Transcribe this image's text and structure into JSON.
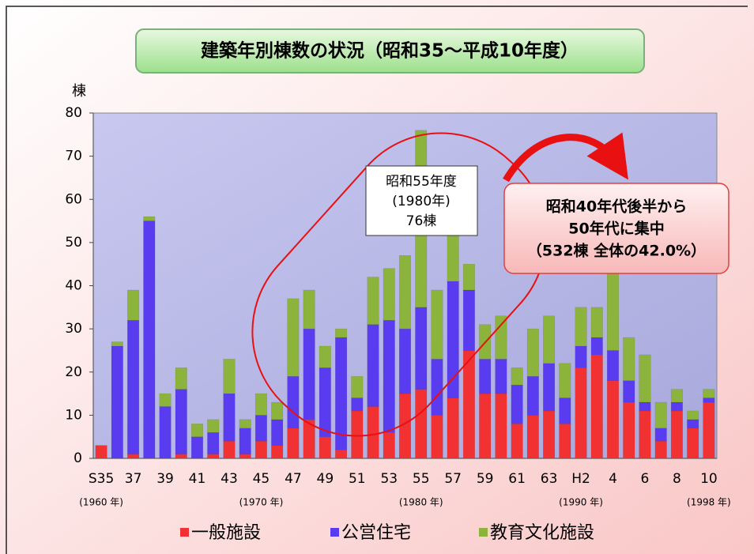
{
  "chart_data": {
    "type": "stacked_bar",
    "title": "建築年別棟数の状況（昭和35〜平成10年度）",
    "y_axis_label": "棟",
    "categories": [
      "S35",
      null,
      "37",
      null,
      "39",
      null,
      "41",
      null,
      "43",
      null,
      "45",
      null,
      "47",
      null,
      "49",
      null,
      "51",
      null,
      "53",
      null,
      "55",
      null,
      "57",
      null,
      "59",
      null,
      "61",
      null,
      "63",
      null,
      "H2",
      null,
      "4",
      null,
      "6",
      null,
      "8",
      null,
      "10"
    ],
    "year_labels": [
      "(1960 年)",
      null,
      null,
      null,
      null,
      null,
      null,
      null,
      null,
      null,
      "(1970 年)",
      null,
      null,
      null,
      null,
      null,
      null,
      null,
      null,
      null,
      "(1980 年)",
      null,
      null,
      null,
      null,
      null,
      null,
      null,
      null,
      null,
      "(1990 年)",
      null,
      null,
      null,
      null,
      null,
      null,
      null,
      "(1998 年)"
    ],
    "series": [
      {
        "name": "一般施設",
        "color": "#f23232",
        "values": [
          3,
          0,
          1,
          0,
          0,
          1,
          0,
          1,
          4,
          1,
          4,
          3,
          7,
          9,
          5,
          2,
          11,
          12,
          6,
          15,
          16,
          10,
          14,
          25,
          15,
          15,
          8,
          10,
          11,
          8,
          21,
          24,
          18,
          13,
          11,
          4,
          11,
          7,
          13
        ]
      },
      {
        "name": "公営住宅",
        "color": "#5a3cf0",
        "values": [
          0,
          26,
          31,
          55,
          12,
          15,
          5,
          5,
          11,
          6,
          6,
          6,
          12,
          21,
          16,
          26,
          3,
          19,
          26,
          15,
          19,
          13,
          27,
          14,
          8,
          8,
          9,
          9,
          11,
          6,
          5,
          4,
          7,
          5,
          2,
          3,
          2,
          2,
          1
        ]
      },
      {
        "name": "教育文化施設",
        "color": "#8cb43c",
        "values": [
          0,
          1,
          7,
          1,
          3,
          5,
          3,
          3,
          8,
          2,
          5,
          4,
          18,
          9,
          5,
          2,
          5,
          11,
          12,
          17,
          41,
          16,
          17,
          6,
          8,
          10,
          4,
          11,
          11,
          8,
          9,
          7,
          21,
          10,
          11,
          6,
          3,
          2,
          2
        ]
      }
    ],
    "ylim": [
      0,
      80
    ],
    "yticks": [
      0,
      10,
      20,
      30,
      40,
      50,
      60,
      70,
      80
    ],
    "annotations": [
      {
        "lines": [
          "昭和55年度",
          "(1980年)",
          "76棟"
        ]
      },
      {
        "lines": [
          "昭和40年代後半から",
          "50年代に集中",
          "（532棟 全体の42.0%）"
        ]
      }
    ]
  }
}
